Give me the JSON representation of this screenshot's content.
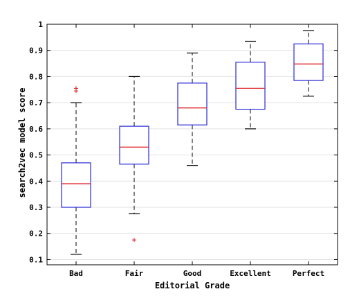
{
  "chart_data": {
    "type": "box",
    "xlabel": "Editorial Grade",
    "ylabel": "search2vec model score",
    "ylim": [
      0.08,
      1.0
    ],
    "yticks": [
      "0.1",
      "0.2",
      "0.3",
      "0.4",
      "0.5",
      "0.6",
      "0.7",
      "0.8",
      "0.9",
      "1"
    ],
    "grid": "horizontal",
    "colors": {
      "box": "#2a2ad6",
      "median": "#e0242a",
      "whisker": "#000000",
      "outlier": "#e0242a",
      "grid": "#e2e2e2"
    },
    "categories": [
      "Bad",
      "Fair",
      "Good",
      "Excellent",
      "Perfect"
    ],
    "boxes": [
      {
        "category": "Bad",
        "whisker_low": 0.12,
        "q1": 0.3,
        "median": 0.39,
        "q3": 0.47,
        "whisker_high": 0.7,
        "outliers": [
          0.745,
          0.755
        ]
      },
      {
        "category": "Fair",
        "whisker_low": 0.275,
        "q1": 0.465,
        "median": 0.53,
        "q3": 0.61,
        "whisker_high": 0.8,
        "outliers": [
          0.175
        ]
      },
      {
        "category": "Good",
        "whisker_low": 0.46,
        "q1": 0.615,
        "median": 0.68,
        "q3": 0.775,
        "whisker_high": 0.89,
        "outliers": []
      },
      {
        "category": "Excellent",
        "whisker_low": 0.6,
        "q1": 0.675,
        "median": 0.755,
        "q3": 0.855,
        "whisker_high": 0.935,
        "outliers": []
      },
      {
        "category": "Perfect",
        "whisker_low": 0.725,
        "q1": 0.785,
        "median": 0.848,
        "q3": 0.925,
        "whisker_high": 0.975,
        "outliers": []
      }
    ]
  }
}
